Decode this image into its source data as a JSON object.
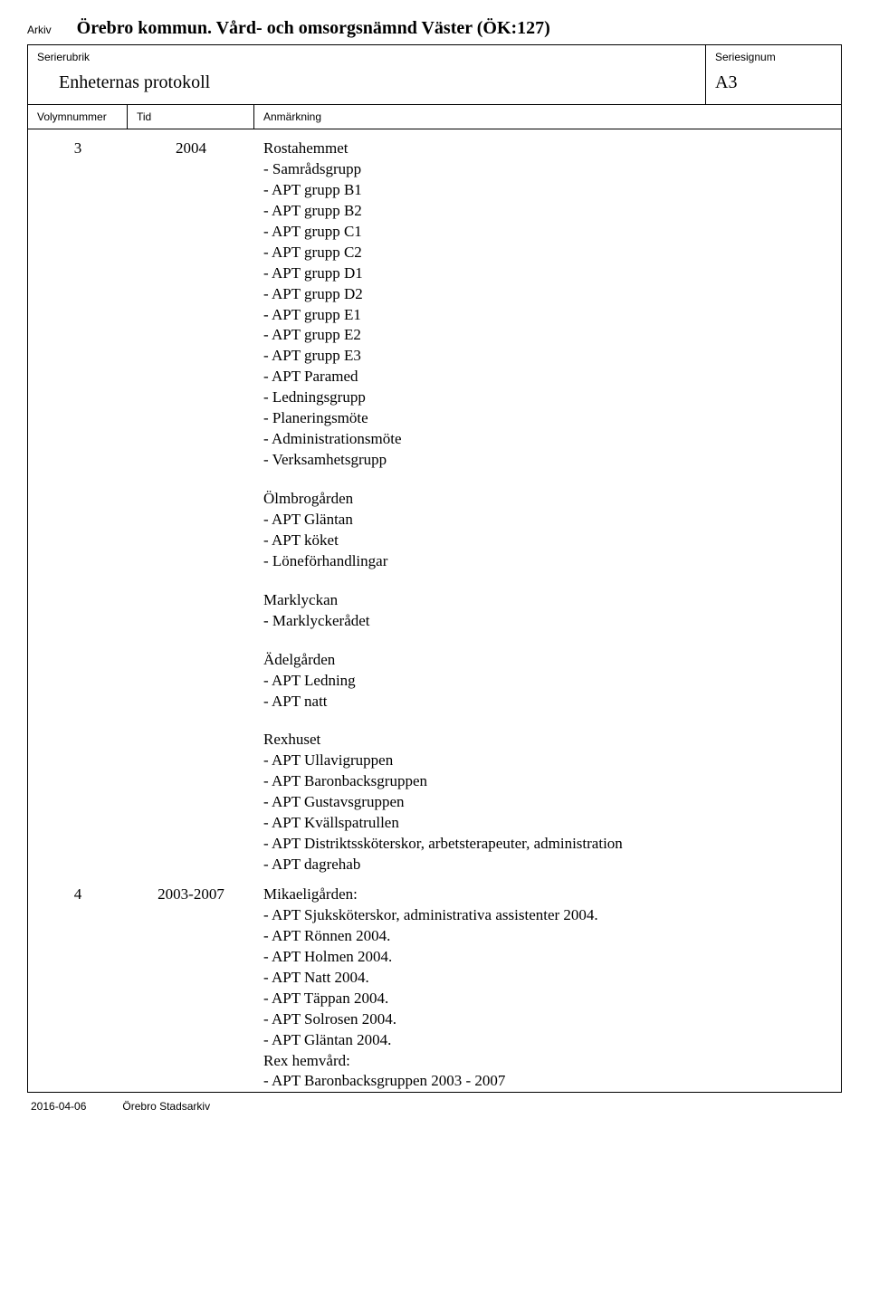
{
  "labels": {
    "arkiv": "Arkiv",
    "serierubrik": "Serierubrik",
    "seriesignum": "Seriesignum",
    "volymnummer": "Volymnummer",
    "tid": "Tid",
    "anmarkning": "Anmärkning"
  },
  "archive_title": "Örebro kommun. Vård- och omsorgsnämnd Väster (ÖK:127)",
  "series_title": "Enheternas protokoll",
  "series_signum": "A3",
  "rows": [
    {
      "vol": "3",
      "tid": "2004",
      "blocks": [
        {
          "title": "Rostahemmet",
          "items": [
            "- Samrådsgrupp",
            "- APT grupp B1",
            "- APT grupp B2",
            "- APT grupp C1",
            "- APT grupp C2",
            "- APT grupp D1",
            "- APT grupp D2",
            "- APT grupp E1",
            "- APT grupp E2",
            "- APT grupp E3",
            "- APT Paramed",
            "- Ledningsgrupp",
            "- Planeringsmöte",
            "- Administrationsmöte",
            "- Verksamhetsgrupp"
          ]
        },
        {
          "title": "Ölmbrogården",
          "items": [
            "- APT Gläntan",
            "- APT köket",
            "- Löneförhandlingar"
          ]
        },
        {
          "title": "Marklyckan",
          "items": [
            "- Marklyckerådet"
          ]
        },
        {
          "title": "Ädelgården",
          "items": [
            "- APT Ledning",
            "- APT natt"
          ]
        },
        {
          "title": "Rexhuset",
          "items": [
            "- APT Ullavigruppen",
            "- APT Baronbacksgruppen",
            "- APT Gustavsgruppen",
            "- APT Kvällspatrullen",
            "- APT Distriktssköterskor, arbetsterapeuter, administration",
            "- APT dagrehab"
          ]
        }
      ]
    },
    {
      "vol": "4",
      "tid": "2003-2007",
      "blocks": [
        {
          "title": "Mikaeligården:",
          "items": [
            "- APT Sjuksköterskor, administrativa assistenter 2004.",
            "- APT Rönnen 2004.",
            "- APT Holmen 2004.",
            "- APT Natt 2004.",
            "- APT Täppan 2004.",
            "- APT Solrosen 2004.",
            "- APT Gläntan 2004.",
            "Rex hemvård:",
            "- APT Baronbacksgruppen 2003 - 2007"
          ]
        }
      ]
    }
  ],
  "footer": {
    "date": "2016-04-06",
    "source": "Örebro Stadsarkiv"
  }
}
